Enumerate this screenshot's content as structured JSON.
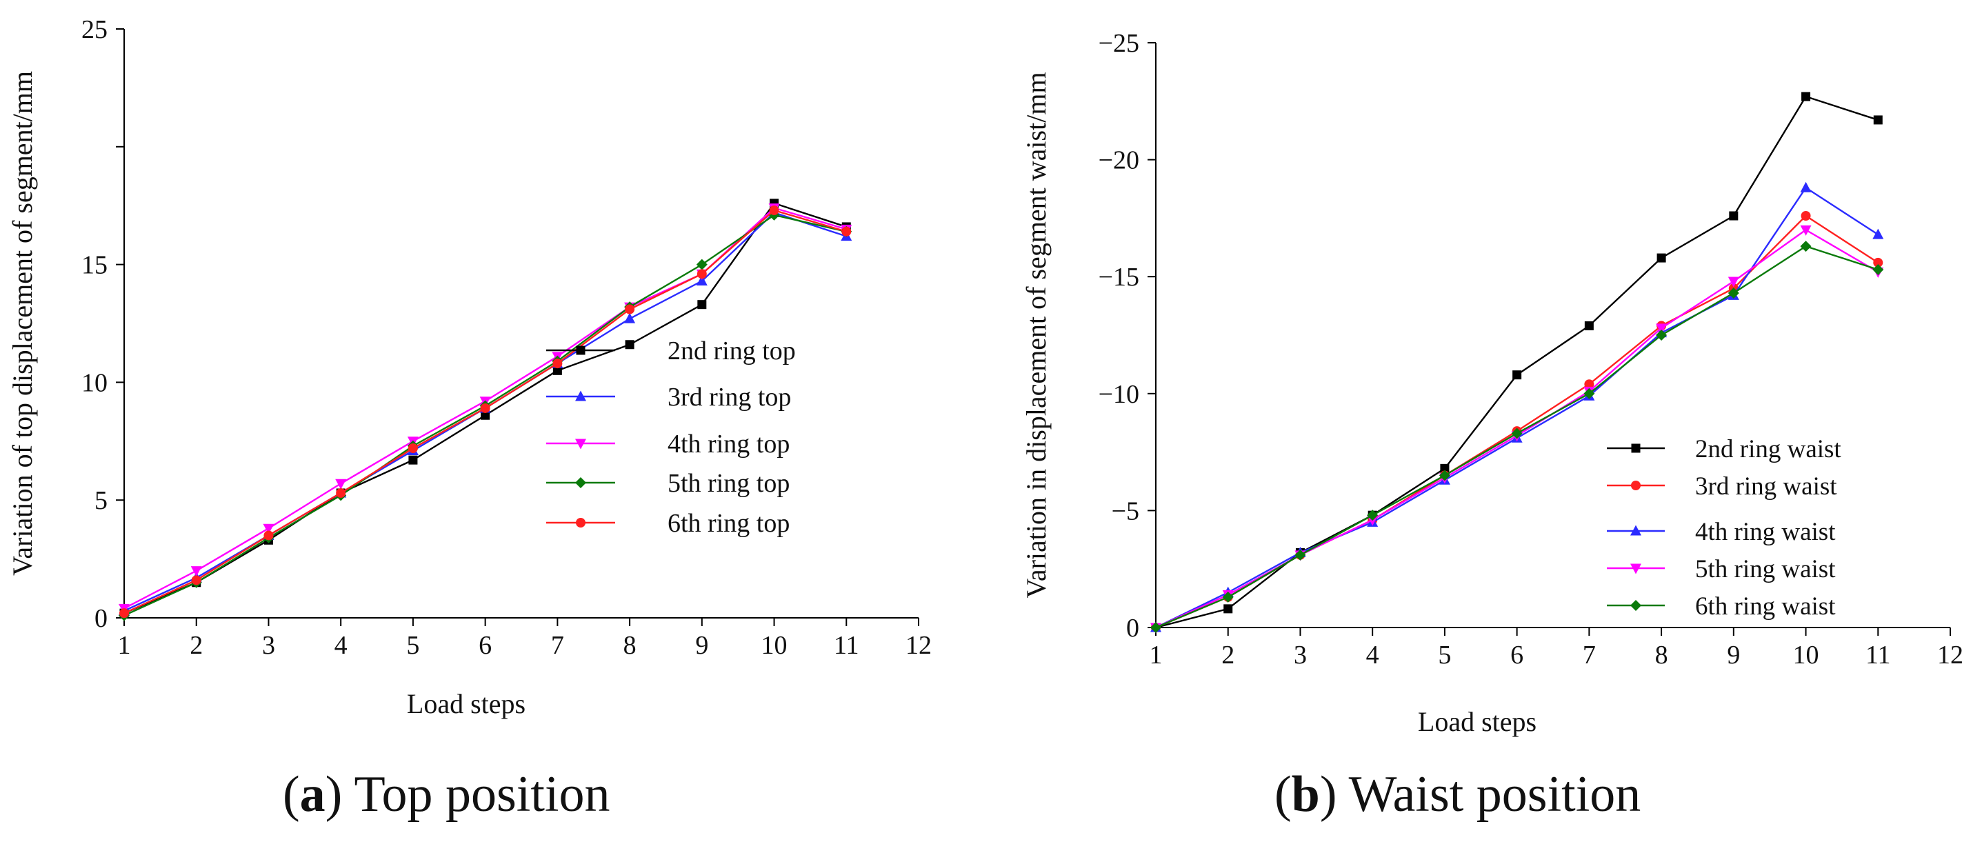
{
  "chart_data": [
    {
      "id": "a",
      "type": "line",
      "caption_letter": "a",
      "caption_text": "Top position",
      "xlabel": "Load steps",
      "ylabel": "Variation of top displacement of segment/mm",
      "xlim": [
        1,
        12
      ],
      "ylim": [
        0,
        25
      ],
      "x_ticks": [
        1,
        2,
        3,
        4,
        5,
        6,
        7,
        8,
        9,
        10,
        11,
        12
      ],
      "y_ticks": [
        0,
        5,
        10,
        15,
        20,
        25
      ],
      "y_tick_labels": [
        "0",
        "5",
        "10",
        "15",
        "",
        "25"
      ],
      "legend_position": "center-right",
      "x": [
        1,
        2,
        3,
        4,
        5,
        6,
        7,
        8,
        9,
        10,
        11
      ],
      "series": [
        {
          "name": "2nd ring top",
          "color": "#000000",
          "marker": "square",
          "values": [
            0.2,
            1.5,
            3.3,
            5.3,
            6.7,
            8.6,
            10.5,
            11.6,
            13.3,
            17.6,
            16.6
          ]
        },
        {
          "name": "3rd ring top",
          "color": "#2b2bff",
          "marker": "triangle-up",
          "values": [
            0.3,
            1.7,
            3.5,
            5.3,
            7.1,
            8.9,
            10.8,
            12.7,
            14.3,
            17.2,
            16.2
          ]
        },
        {
          "name": "4th ring top",
          "color": "#ff00ff",
          "marker": "triangle-down",
          "values": [
            0.4,
            2.0,
            3.8,
            5.7,
            7.5,
            9.2,
            11.1,
            13.2,
            14.6,
            17.4,
            16.5
          ]
        },
        {
          "name": "5th ring top",
          "color": "#0a7a0a",
          "marker": "diamond",
          "values": [
            0.1,
            1.5,
            3.4,
            5.2,
            7.3,
            9.0,
            10.9,
            13.2,
            15.0,
            17.1,
            16.4
          ]
        },
        {
          "name": "6th ring top",
          "color": "#ff2020",
          "marker": "circle",
          "values": [
            0.2,
            1.6,
            3.5,
            5.3,
            7.2,
            8.9,
            10.8,
            13.1,
            14.6,
            17.3,
            16.4
          ]
        }
      ]
    },
    {
      "id": "b",
      "type": "line",
      "caption_letter": "b",
      "caption_text": "Waist position",
      "xlabel": "Load steps",
      "ylabel": "Variation in displacement of segment waist/mm",
      "xlim": [
        1,
        12
      ],
      "ylim": [
        0,
        -25
      ],
      "x_ticks": [
        1,
        2,
        3,
        4,
        5,
        6,
        7,
        8,
        9,
        10,
        11,
        12
      ],
      "y_ticks": [
        0,
        -5,
        -10,
        -15,
        -20,
        -25
      ],
      "y_tick_labels": [
        "0",
        "−5",
        "−10",
        "−15",
        "−20",
        "−25"
      ],
      "legend_position": "bottom-right",
      "x": [
        1,
        2,
        3,
        4,
        5,
        6,
        7,
        8,
        9,
        10,
        11
      ],
      "series": [
        {
          "name": "2nd ring waist",
          "color": "#000000",
          "marker": "square",
          "values": [
            0,
            -0.8,
            -3.2,
            -4.8,
            -6.8,
            -10.8,
            -12.9,
            -15.8,
            -17.6,
            -22.7,
            -21.7
          ]
        },
        {
          "name": "3rd ring waist",
          "color": "#ff2020",
          "marker": "circle",
          "values": [
            0,
            -1.3,
            -3.1,
            -4.6,
            -6.5,
            -8.4,
            -10.4,
            -12.9,
            -14.5,
            -17.6,
            -15.6
          ]
        },
        {
          "name": "4th ring waist",
          "color": "#2b2bff",
          "marker": "triangle-up",
          "values": [
            0,
            -1.5,
            -3.2,
            -4.5,
            -6.3,
            -8.1,
            -9.9,
            -12.6,
            -14.2,
            -18.8,
            -16.8
          ]
        },
        {
          "name": "5th ring waist",
          "color": "#ff00ff",
          "marker": "triangle-down",
          "values": [
            0,
            -1.4,
            -3.1,
            -4.6,
            -6.4,
            -8.2,
            -10.1,
            -12.8,
            -14.8,
            -17.0,
            -15.2
          ]
        },
        {
          "name": "6th ring waist",
          "color": "#0a7a0a",
          "marker": "diamond",
          "values": [
            0,
            -1.3,
            -3.1,
            -4.8,
            -6.5,
            -8.3,
            -10.0,
            -12.5,
            -14.3,
            -16.3,
            -15.3
          ]
        }
      ]
    }
  ]
}
